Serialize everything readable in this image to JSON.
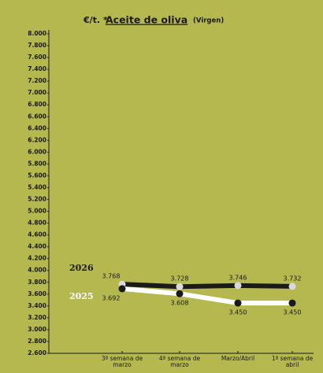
{
  "chart_data": {
    "type": "line",
    "title": "Aceite de oliva",
    "unit": "€/t. *",
    "subtitle": "(Virgen)",
    "categories": [
      "3ª semana de marzo",
      "4ª semana de marzo",
      "Marzo/Abril",
      "1ª semana de abril"
    ],
    "series": [
      {
        "name": "2026",
        "color": "#1a1a1a",
        "marker_color": "#d9d9d9",
        "label_color": "#1a1a1a",
        "values": [
          3768,
          3728,
          3746,
          3732
        ],
        "value_labels": [
          "3.768",
          "3.728",
          "3.746",
          "3.732"
        ]
      },
      {
        "name": "2025",
        "color": "#ffffff",
        "marker_color": "#1a1a1a",
        "label_color": "#ffffff",
        "values": [
          3692,
          3608,
          3450,
          3450
        ],
        "value_labels": [
          "3.692",
          "3.608",
          "3.450",
          "3.450"
        ]
      }
    ],
    "ylim": [
      2600,
      8000
    ],
    "yticks": [
      {
        "value": 2600,
        "label": "2.600"
      },
      {
        "value": 2800,
        "label": "2.800"
      },
      {
        "value": 3000,
        "label": "3.000"
      },
      {
        "value": 3200,
        "label": "3.200"
      },
      {
        "value": 3400,
        "label": "3.400"
      },
      {
        "value": 3600,
        "label": "3.600"
      },
      {
        "value": 3800,
        "label": "3.800"
      },
      {
        "value": 4000,
        "label": "4.000"
      },
      {
        "value": 4200,
        "label": "4.200"
      },
      {
        "value": 4400,
        "label": "4.400"
      },
      {
        "value": 4600,
        "label": "4.600"
      },
      {
        "value": 4800,
        "label": "4.800"
      },
      {
        "value": 5000,
        "label": "5.000"
      },
      {
        "value": 5200,
        "label": "5.200"
      },
      {
        "value": 5400,
        "label": "5.400"
      },
      {
        "value": 5600,
        "label": "5.600"
      },
      {
        "value": 5800,
        "label": "5.800"
      },
      {
        "value": 6000,
        "label": "6.000"
      },
      {
        "value": 6200,
        "label": "6.200"
      },
      {
        "value": 6400,
        "label": "6.400"
      },
      {
        "value": 6600,
        "label": "6.600"
      },
      {
        "value": 6800,
        "label": "6.800"
      },
      {
        "value": 7000,
        "label": "7.000"
      },
      {
        "value": 7200,
        "label": "7.200"
      },
      {
        "value": 7400,
        "label": "7.400"
      },
      {
        "value": 7600,
        "label": "7.600"
      },
      {
        "value": 7800,
        "label": "7.800"
      },
      {
        "value": 8000,
        "label": "8.000"
      }
    ],
    "background": "#b4b84f",
    "grid": false
  }
}
